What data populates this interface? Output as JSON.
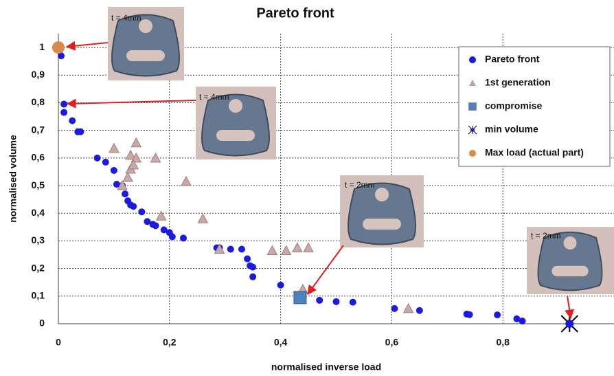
{
  "chart_data": {
    "type": "scatter",
    "title": "Pareto front",
    "xlabel": "normalised inverse load",
    "ylabel": "normalised volume",
    "xlim": [
      0,
      1
    ],
    "ylim": [
      0,
      1.05
    ],
    "xticks": [
      0,
      {
        "value": 0.2,
        "label": "0,2"
      },
      {
        "value": 0.4,
        "label": "0,4"
      },
      {
        "value": 0.6,
        "label": "0,6"
      },
      {
        "value": 0.8,
        "label": "0,8"
      }
    ],
    "yticks": [
      0,
      {
        "value": 0.1,
        "label": "0,1"
      },
      {
        "value": 0.2,
        "label": "0,2"
      },
      {
        "value": 0.3,
        "label": "0,3"
      },
      {
        "value": 0.4,
        "label": "0,4"
      },
      {
        "value": 0.5,
        "label": "0,5"
      },
      {
        "value": 0.6,
        "label": "0,6"
      },
      {
        "value": 0.7,
        "label": "0,7"
      },
      {
        "value": 0.8,
        "label": "0,8"
      },
      {
        "value": 0.9,
        "label": "0,9"
      },
      1
    ],
    "grid": true,
    "legend": "upper right",
    "series": [
      {
        "name": "Pareto front",
        "color": "#1a1ae0",
        "marker": "circle",
        "x": [
          0.005,
          0.01,
          0.01,
          0.025,
          0.035,
          0.04,
          0.07,
          0.085,
          0.1,
          0.105,
          0.115,
          0.12,
          0.125,
          0.13,
          0.135,
          0.15,
          0.16,
          0.17,
          0.175,
          0.19,
          0.2,
          0.205,
          0.225,
          0.285,
          0.29,
          0.31,
          0.33,
          0.34,
          0.345,
          0.35,
          0.35,
          0.4,
          0.47,
          0.5,
          0.53,
          0.605,
          0.65,
          0.735,
          0.74,
          0.79,
          0.825,
          0.835
        ],
        "values": [
          0.97,
          0.795,
          0.765,
          0.735,
          0.695,
          0.695,
          0.6,
          0.585,
          0.555,
          0.505,
          0.5,
          0.47,
          0.445,
          0.43,
          0.425,
          0.405,
          0.37,
          0.36,
          0.355,
          0.34,
          0.33,
          0.315,
          0.31,
          0.275,
          0.275,
          0.27,
          0.27,
          0.235,
          0.21,
          0.205,
          0.17,
          0.14,
          0.085,
          0.08,
          0.078,
          0.055,
          0.048,
          0.035,
          0.033,
          0.032,
          0.018,
          0.01
        ]
      },
      {
        "name": "1st generation",
        "color": "#c9a9a6",
        "marker": "triangle",
        "x": [
          0.1,
          0.115,
          0.125,
          0.13,
          0.13,
          0.14,
          0.14,
          0.135,
          0.175,
          0.185,
          0.23,
          0.26,
          0.29,
          0.385,
          0.41,
          0.43,
          0.45,
          0.44,
          0.63
        ],
        "values": [
          0.635,
          0.5,
          0.53,
          0.61,
          0.56,
          0.655,
          0.6,
          0.575,
          0.6,
          0.39,
          0.515,
          0.38,
          0.27,
          0.265,
          0.265,
          0.275,
          0.275,
          0.125,
          0.055
        ]
      },
      {
        "name": "compromise",
        "color": "#4f81bd",
        "marker": "square",
        "x": [
          0.435
        ],
        "values": [
          0.095
        ]
      },
      {
        "name": "min volume",
        "color": "#000000",
        "marker": "star",
        "x": [
          0.92
        ],
        "values": [
          0
        ]
      },
      {
        "name": "Max load (actual part)",
        "color": "#d9894a",
        "marker": "bigcircle",
        "x": [
          0
        ],
        "values": [
          1
        ]
      }
    ],
    "annotations": [
      "t = 4mm",
      "t = 4mm",
      "t = 2mm",
      "t = 2mm"
    ]
  }
}
